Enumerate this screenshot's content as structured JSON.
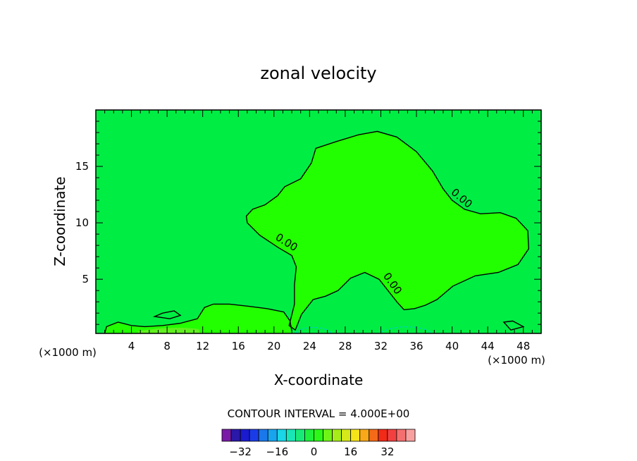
{
  "chart_data": {
    "type": "contour",
    "title": "zonal velocity",
    "xlabel": "X-coordinate",
    "ylabel": "Z-coordinate",
    "x_unit": "(×1000 m)",
    "x_ticks": [
      4,
      8,
      12,
      16,
      20,
      24,
      28,
      32,
      36,
      40,
      44,
      48
    ],
    "y_ticks": [
      5,
      10,
      15
    ],
    "xlim": [
      0,
      50
    ],
    "ylim": [
      0.2,
      20
    ],
    "contour_interval_text": "CONTOUR INTERVAL = 4.000E+00",
    "contour_labels": [
      "0.00",
      "0.00",
      "0.00"
    ],
    "zero_contour": [
      [
        16.9,
        10.6
      ],
      [
        17.6,
        11.2
      ],
      [
        19.0,
        11.6
      ],
      [
        20.4,
        12.4
      ],
      [
        21.2,
        13.2
      ],
      [
        23.0,
        13.9
      ],
      [
        24.2,
        15.3
      ],
      [
        24.7,
        16.6
      ],
      [
        27.0,
        17.2
      ],
      [
        29.5,
        17.8
      ],
      [
        31.6,
        18.1
      ],
      [
        33.8,
        17.6
      ],
      [
        36.0,
        16.3
      ],
      [
        37.8,
        14.6
      ],
      [
        39.0,
        13.0
      ],
      [
        40.0,
        12.0
      ],
      [
        41.4,
        11.2
      ],
      [
        43.2,
        10.8
      ],
      [
        45.4,
        10.9
      ],
      [
        47.2,
        10.4
      ],
      [
        48.5,
        9.3
      ],
      [
        48.6,
        7.7
      ],
      [
        47.4,
        6.3
      ],
      [
        45.2,
        5.6
      ],
      [
        42.6,
        5.3
      ],
      [
        40.1,
        4.4
      ],
      [
        38.3,
        3.2
      ],
      [
        37.0,
        2.7
      ],
      [
        35.8,
        2.4
      ],
      [
        34.6,
        2.3
      ],
      [
        33.8,
        3.0
      ],
      [
        32.7,
        4.1
      ],
      [
        31.8,
        5.0
      ],
      [
        30.2,
        5.6
      ],
      [
        28.6,
        5.1
      ],
      [
        27.2,
        4.0
      ],
      [
        25.8,
        3.5
      ],
      [
        24.4,
        3.2
      ],
      [
        23.1,
        1.9
      ],
      [
        22.4,
        0.5
      ],
      [
        21.7,
        0.9
      ],
      [
        22.3,
        2.8
      ],
      [
        22.3,
        4.5
      ],
      [
        22.5,
        6.1
      ],
      [
        22.0,
        7.1
      ],
      [
        20.5,
        7.8
      ],
      [
        18.4,
        8.9
      ],
      [
        17.0,
        10.0
      ],
      [
        16.9,
        10.6
      ]
    ],
    "lower_contour": [
      [
        1.0,
        0.2
      ],
      [
        1.2,
        0.8
      ],
      [
        2.5,
        1.2
      ],
      [
        4.0,
        0.9
      ],
      [
        5.5,
        0.8
      ],
      [
        7.5,
        0.9
      ],
      [
        9.5,
        1.1
      ],
      [
        11.4,
        1.5
      ],
      [
        12.2,
        2.5
      ],
      [
        13.2,
        2.8
      ],
      [
        15.0,
        2.8
      ],
      [
        17.2,
        2.6
      ],
      [
        19.2,
        2.4
      ],
      [
        21.1,
        2.1
      ],
      [
        21.8,
        1.3
      ],
      [
        22.0,
        0.4
      ]
    ],
    "closed_contours": [
      [
        [
          6.6,
          1.7
        ],
        [
          7.5,
          2.0
        ],
        [
          8.8,
          2.2
        ],
        [
          9.5,
          1.8
        ],
        [
          8.3,
          1.5
        ],
        [
          6.6,
          1.7
        ]
      ],
      [
        [
          45.8,
          1.2
        ],
        [
          46.8,
          1.3
        ],
        [
          48.0,
          0.8
        ],
        [
          46.6,
          0.5
        ],
        [
          45.8,
          1.2
        ]
      ]
    ],
    "colorbar": {
      "labels": [
        "−32",
        "−16",
        "0",
        "16",
        "32"
      ],
      "label_values": [
        -32,
        -16,
        0,
        16,
        32
      ],
      "colors": [
        "#7a1aa8",
        "#2a18a8",
        "#1a1ad0",
        "#1a3ce8",
        "#1a78ea",
        "#18a4ee",
        "#1ad6e6",
        "#18e6b8",
        "#18ea78",
        "#1ef03c",
        "#2cf818",
        "#70f418",
        "#a6ec18",
        "#d4e81a",
        "#f6e41a",
        "#f8a818",
        "#f46a18",
        "#f22a18",
        "#f24040",
        "#f47070",
        "#f8a0a0"
      ]
    }
  }
}
